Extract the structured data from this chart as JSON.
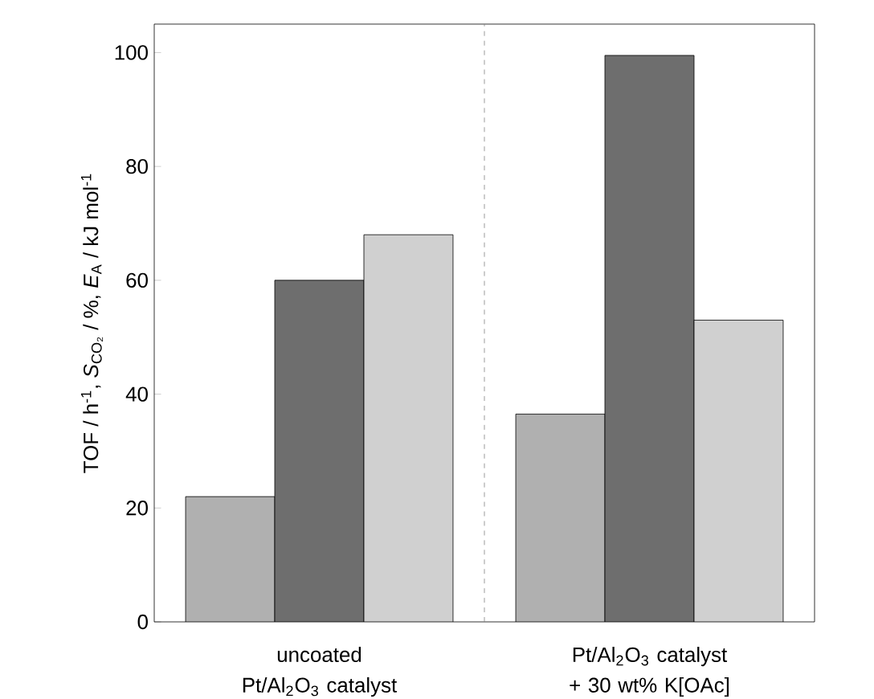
{
  "chart_data": {
    "type": "bar",
    "ylabel": "TOF / h$^{-1}$, *S*$_{CO₂}$ / %, *E*$_{A}$ / kJ mol$^{-1}$",
    "categories": [
      "uncoated Pt/Al$_{2}$O$_{3}$ catalyst",
      "Pt/Al$_{2}$O$_{3}$ catalyst + 30 wt% K[OAc]"
    ],
    "series": [
      {
        "color": "#b0b0b0",
        "values": [
          22,
          36.5
        ]
      },
      {
        "color": "#6e6e6e",
        "values": [
          60,
          99.5
        ]
      },
      {
        "color": "#d0d0d0",
        "values": [
          68,
          53
        ]
      }
    ],
    "ylim": [
      0,
      105
    ],
    "yticks": [
      0,
      20,
      40,
      60,
      80,
      100
    ]
  }
}
